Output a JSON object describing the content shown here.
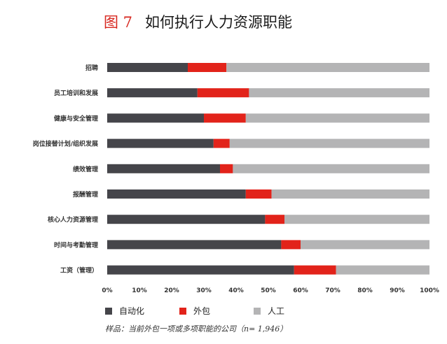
{
  "figure": {
    "number": "图 7",
    "title": "如何执行人力资源职能"
  },
  "colors": {
    "automation": "#45454a",
    "outsourcing": "#e2231a",
    "manual": "#b4b4b5"
  },
  "legend": [
    {
      "label": "自动化",
      "color": "#45454a"
    },
    {
      "label": "外包",
      "color": "#e2231a"
    },
    {
      "label": "人工",
      "color": "#b4b4b5"
    }
  ],
  "note": "样品：当前外包一项或多项职能的公司（n= 1,946）",
  "chart_data": {
    "type": "bar",
    "orientation": "horizontal",
    "stacked": true,
    "title": "如何执行人力资源职能",
    "categories": [
      "招聘",
      "员工培训和发展",
      "健康与安全管理",
      "岗位接替计划/组织发展",
      "绩效管理",
      "报酬管理",
      "核心人力资源管理",
      "时间与考勤管理",
      "工资（管理）"
    ],
    "series": [
      {
        "name": "自动化",
        "values": [
          25,
          28,
          30,
          33,
          35,
          43,
          49,
          54,
          58
        ]
      },
      {
        "name": "外包",
        "values": [
          12,
          16,
          13,
          5,
          4,
          8,
          6,
          6,
          13
        ]
      },
      {
        "name": "人工",
        "values": [
          63,
          56,
          57,
          62,
          61,
          49,
          45,
          40,
          29
        ]
      }
    ],
    "xlim": [
      0,
      100
    ],
    "xticks": [
      "0%",
      "10%",
      "20%",
      "30%",
      "40%",
      "50%",
      "60%",
      "70%",
      "80%",
      "90%",
      "100%"
    ],
    "grid": false,
    "legend_position": "bottom"
  }
}
